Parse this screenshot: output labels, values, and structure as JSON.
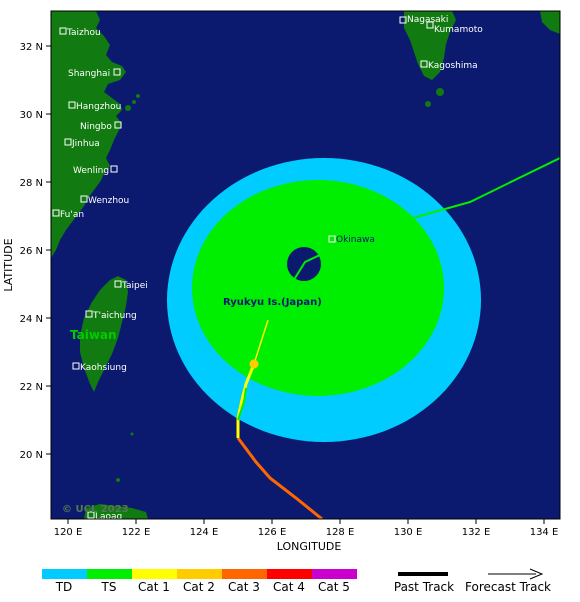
{
  "map": {
    "x_axis_title": "LONGITUDE",
    "y_axis_title": "LATITUDE",
    "lon_ticks": [
      "120 E",
      "122 E",
      "124 E",
      "126 E",
      "128 E",
      "130 E",
      "132 E",
      "134 E"
    ],
    "lat_ticks": [
      "32 N",
      "30 N",
      "28 N",
      "26 N",
      "24 N",
      "22 N",
      "20 N"
    ],
    "colors": {
      "ocean": "#0b1a6e",
      "land": "#117a11",
      "wind_outer": "#00ccff",
      "wind_inner": "#00ee00",
      "eye": "#0b1a6e"
    },
    "region_labels": {
      "taiwan": "Taiwan",
      "ryukyu": "Ryukyu Is.(Japan)"
    },
    "copyright": "© UCL 2023",
    "cities": [
      {
        "name": "Taizhou"
      },
      {
        "name": "Shanghai"
      },
      {
        "name": "Hangzhou"
      },
      {
        "name": "Ningbo"
      },
      {
        "name": "Jinhua"
      },
      {
        "name": "Wenling"
      },
      {
        "name": "Wenzhou"
      },
      {
        "name": "Fu'an"
      },
      {
        "name": "Taipei"
      },
      {
        "name": "T'aichung"
      },
      {
        "name": "Kaohsiung"
      },
      {
        "name": "Laoag"
      },
      {
        "name": "Nagasaki"
      },
      {
        "name": "Kumamoto"
      },
      {
        "name": "Kagoshima"
      },
      {
        "name": "Okinawa"
      }
    ]
  },
  "legend": {
    "categories": [
      {
        "label": "TD",
        "color": "#00ccff"
      },
      {
        "label": "TS",
        "color": "#00ee00"
      },
      {
        "label": "Cat 1",
        "color": "#ffff00"
      },
      {
        "label": "Cat 2",
        "color": "#ffcc00"
      },
      {
        "label": "Cat 3",
        "color": "#ff6600"
      },
      {
        "label": "Cat 4",
        "color": "#ff0000"
      },
      {
        "label": "Cat 5",
        "color": "#cc00cc"
      }
    ],
    "past_track_label": "Past Track",
    "forecast_track_label": "Forecast Track"
  }
}
